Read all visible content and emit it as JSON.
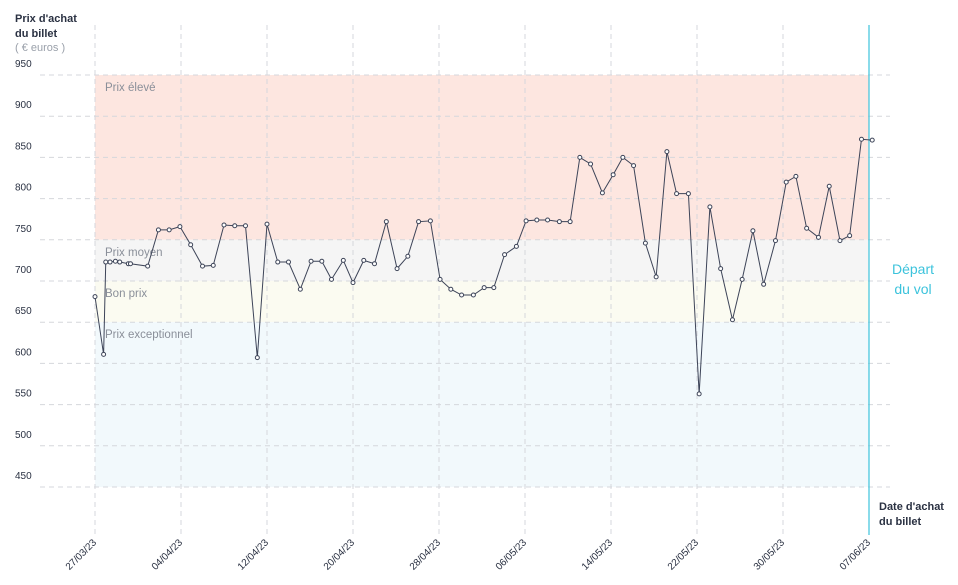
{
  "chart_data": {
    "type": "line",
    "y_title": [
      "Prix d'achat",
      "du billet"
    ],
    "y_unit": "( € euros )",
    "x_title": [
      "Date d'achat",
      "du billet"
    ],
    "annotation": [
      "Départ",
      "du vol"
    ],
    "annotation_color": "#3cc3dc",
    "bands": [
      {
        "label": "Prix élevé",
        "from": 750,
        "to": 950,
        "color": "#fde6e0"
      },
      {
        "label": "Prix moyen",
        "from": 700,
        "to": 750,
        "color": "#f5f5f5"
      },
      {
        "label": "Bon prix",
        "from": 650,
        "to": 700,
        "color": "#fbfbf1"
      },
      {
        "label": "Prix exceptionnel",
        "from": 450,
        "to": 650,
        "color": "#f2f9fc"
      }
    ],
    "xlim": [
      0,
      72
    ],
    "xticks": [
      {
        "value": 0,
        "label": "27/03/23"
      },
      {
        "value": 8,
        "label": "04/04/23"
      },
      {
        "value": 16,
        "label": "12/04/23"
      },
      {
        "value": 24,
        "label": "20/04/23"
      },
      {
        "value": 32,
        "label": "28/04/23"
      },
      {
        "value": 40,
        "label": "06/05/23"
      },
      {
        "value": 48,
        "label": "14/05/23"
      },
      {
        "value": 56,
        "label": "22/05/23"
      },
      {
        "value": 64,
        "label": "30/05/23"
      },
      {
        "value": 72,
        "label": "07/06/23"
      }
    ],
    "ylim": [
      450,
      950
    ],
    "yticks": [
      450,
      500,
      550,
      600,
      650,
      700,
      750,
      800,
      850,
      900,
      950
    ],
    "grid": true,
    "x": [
      0,
      0.8,
      1.0,
      1.4,
      1.9,
      2.3,
      3.1,
      3.3,
      4.9,
      5.9,
      6.9,
      7.9,
      8.9,
      10.0,
      11.0,
      12.0,
      13.0,
      14.0,
      15.1,
      16.0,
      17.0,
      18.0,
      19.1,
      20.1,
      21.1,
      22.0,
      23.1,
      24.0,
      25.0,
      26.0,
      27.1,
      28.1,
      29.1,
      30.1,
      31.2,
      32.1,
      33.1,
      34.1,
      35.2,
      36.2,
      37.1,
      38.1,
      39.2,
      40.1,
      41.1,
      42.1,
      43.2,
      44.2,
      45.1,
      46.1,
      47.2,
      48.2,
      49.1,
      50.1,
      51.2,
      52.2,
      53.2,
      54.1,
      55.2,
      56.2,
      57.2,
      58.2,
      59.3,
      60.2,
      61.2,
      62.2,
      63.3,
      64.3,
      65.2,
      66.2,
      67.3,
      68.3,
      69.3,
      70.2,
      71.3,
      72.3
    ],
    "series": [
      {
        "color": "#3d4458",
        "values": [
          681,
          611,
          723,
          723,
          724,
          723,
          721,
          721,
          718,
          762,
          762,
          766,
          744,
          718,
          719,
          768,
          767,
          767,
          607,
          769,
          723,
          723,
          690,
          724,
          724,
          702,
          725,
          698,
          725,
          721,
          772,
          715,
          730,
          772,
          773,
          702,
          690,
          683,
          683,
          692,
          692,
          732,
          742,
          773,
          774,
          774,
          772,
          772,
          850,
          842,
          807,
          829,
          850,
          840,
          746,
          705,
          857,
          806,
          806,
          563,
          790,
          715,
          653,
          702,
          761,
          696,
          749,
          820,
          827,
          764,
          753,
          815,
          749,
          755,
          872,
          871
        ]
      }
    ]
  }
}
